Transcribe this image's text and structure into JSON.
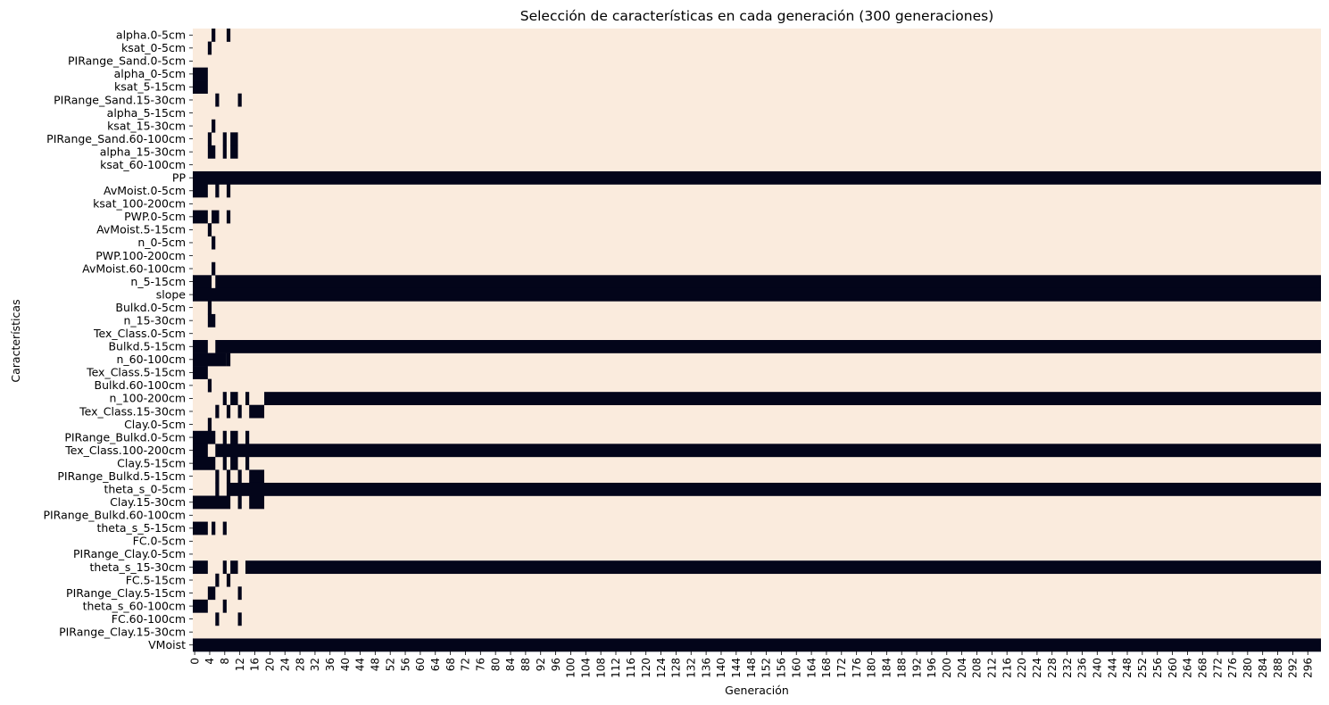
{
  "chart_data": {
    "type": "heatmap",
    "title": "Selección de características en cada generación (300 generaciones)",
    "xlabel": "Generación",
    "ylabel": "Características",
    "n_generations": 300,
    "x_tick_step": 4,
    "x_ticks": [
      0,
      4,
      8,
      12,
      16,
      20,
      24,
      28,
      32,
      36,
      40,
      44,
      48,
      52,
      56,
      60,
      64,
      68,
      72,
      76,
      80,
      84,
      88,
      92,
      96,
      100,
      104,
      108,
      112,
      116,
      120,
      124,
      128,
      132,
      136,
      140,
      144,
      148,
      152,
      156,
      160,
      164,
      168,
      172,
      176,
      180,
      184,
      188,
      192,
      196,
      200,
      204,
      208,
      212,
      216,
      220,
      224,
      228,
      232,
      236,
      240,
      244,
      248,
      252,
      256,
      260,
      264,
      268,
      272,
      276,
      280,
      284,
      288,
      292,
      296
    ],
    "colors": {
      "selected": "#03051a",
      "not_selected": "#faebdd"
    },
    "grid": false,
    "legend": "none",
    "features": [
      "alpha.0-5cm",
      "ksat_0-5cm",
      "PIRange_Sand.0-5cm",
      "alpha_0-5cm",
      "ksat_5-15cm",
      "PIRange_Sand.15-30cm",
      "alpha_5-15cm",
      "ksat_15-30cm",
      "PIRange_Sand.60-100cm",
      "alpha_15-30cm",
      "ksat_60-100cm",
      "PP",
      "AvMoist.0-5cm",
      "ksat_100-200cm",
      "PWP.0-5cm",
      "AvMoist.5-15cm",
      "n_0-5cm",
      "PWP.100-200cm",
      "AvMoist.60-100cm",
      "n_5-15cm",
      "slope",
      "Bulkd.0-5cm",
      "n_15-30cm",
      "Tex_Class.0-5cm",
      "Bulkd.5-15cm",
      "n_60-100cm",
      "Tex_Class.5-15cm",
      "Bulkd.60-100cm",
      "n_100-200cm",
      "Tex_Class.15-30cm",
      "Clay.0-5cm",
      "PIRange_Bulkd.0-5cm",
      "Tex_Class.100-200cm",
      "Clay.5-15cm",
      "PIRange_Bulkd.5-15cm",
      "theta_s_0-5cm",
      "Clay.15-30cm",
      "PIRange_Bulkd.60-100cm",
      "theta_s_5-15cm",
      "FC.0-5cm",
      "PIRange_Clay.0-5cm",
      "theta_s_15-30cm",
      "FC.5-15cm",
      "PIRange_Clay.5-15cm",
      "theta_s_60-100cm",
      "FC.60-100cm",
      "PIRange_Clay.15-30cm",
      "VMoist"
    ],
    "selected_ranges": [
      [
        [
          5,
          5
        ],
        [
          9,
          9
        ]
      ],
      [
        [
          4,
          4
        ]
      ],
      [],
      [
        [
          0,
          3
        ]
      ],
      [
        [
          0,
          3
        ]
      ],
      [
        [
          6,
          6
        ],
        [
          12,
          12
        ]
      ],
      [],
      [
        [
          5,
          5
        ]
      ],
      [
        [
          4,
          4
        ],
        [
          8,
          8
        ],
        [
          10,
          11
        ]
      ],
      [
        [
          4,
          5
        ],
        [
          8,
          8
        ],
        [
          10,
          11
        ]
      ],
      [],
      [
        [
          0,
          299
        ]
      ],
      [
        [
          0,
          3
        ],
        [
          6,
          6
        ],
        [
          9,
          9
        ]
      ],
      [],
      [
        [
          0,
          3
        ],
        [
          5,
          6
        ],
        [
          9,
          9
        ]
      ],
      [
        [
          4,
          4
        ]
      ],
      [
        [
          5,
          5
        ]
      ],
      [],
      [
        [
          5,
          5
        ]
      ],
      [
        [
          0,
          4
        ],
        [
          6,
          299
        ]
      ],
      [
        [
          0,
          299
        ]
      ],
      [
        [
          4,
          4
        ]
      ],
      [
        [
          4,
          5
        ]
      ],
      [],
      [
        [
          0,
          3
        ],
        [
          6,
          299
        ]
      ],
      [
        [
          0,
          8
        ],
        [
          9,
          9
        ]
      ],
      [
        [
          0,
          3
        ]
      ],
      [
        [
          4,
          4
        ]
      ],
      [
        [
          8,
          8
        ],
        [
          10,
          11
        ],
        [
          14,
          14
        ],
        [
          19,
          299
        ]
      ],
      [
        [
          6,
          6
        ],
        [
          9,
          9
        ],
        [
          12,
          12
        ],
        [
          15,
          18
        ]
      ],
      [
        [
          4,
          4
        ]
      ],
      [
        [
          0,
          5
        ],
        [
          8,
          8
        ],
        [
          10,
          11
        ],
        [
          14,
          14
        ]
      ],
      [
        [
          0,
          3
        ],
        [
          6,
          299
        ]
      ],
      [
        [
          0,
          5
        ],
        [
          8,
          8
        ],
        [
          10,
          11
        ],
        [
          14,
          14
        ]
      ],
      [
        [
          6,
          6
        ],
        [
          9,
          9
        ],
        [
          12,
          12
        ],
        [
          15,
          18
        ]
      ],
      [
        [
          6,
          6
        ],
        [
          9,
          299
        ]
      ],
      [
        [
          0,
          9
        ],
        [
          12,
          12
        ],
        [
          15,
          18
        ]
      ],
      [],
      [
        [
          0,
          3
        ],
        [
          5,
          5
        ],
        [
          8,
          8
        ]
      ],
      [],
      [],
      [
        [
          0,
          3
        ],
        [
          8,
          8
        ],
        [
          10,
          11
        ],
        [
          14,
          299
        ]
      ],
      [
        [
          6,
          6
        ],
        [
          9,
          9
        ]
      ],
      [
        [
          4,
          5
        ],
        [
          12,
          12
        ]
      ],
      [
        [
          0,
          3
        ],
        [
          8,
          8
        ]
      ],
      [
        [
          6,
          6
        ],
        [
          12,
          12
        ]
      ],
      [],
      [
        [
          0,
          299
        ]
      ]
    ]
  }
}
